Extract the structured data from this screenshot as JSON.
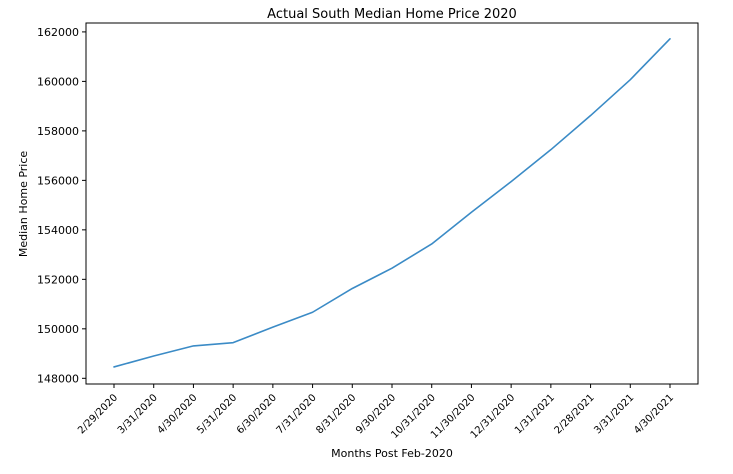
{
  "chart_data": {
    "type": "line",
    "title": "Actual South Median Home Price 2020",
    "xlabel": "Months Post Feb-2020",
    "ylabel": "Median Home Price",
    "categories": [
      "2/29/2020",
      "3/31/2020",
      "4/30/2020",
      "5/31/2020",
      "6/30/2020",
      "7/31/2020",
      "8/31/2020",
      "9/30/2020",
      "10/31/2020",
      "11/30/2020",
      "12/31/2020",
      "1/31/2021",
      "2/28/2021",
      "3/31/2021",
      "4/30/2021"
    ],
    "series": [
      {
        "color": "#3b8bc6",
        "values": [
          148460,
          148900,
          149310,
          149440,
          150070,
          150670,
          151630,
          152450,
          153430,
          154710,
          155950,
          157240,
          158620,
          160070,
          161720
        ]
      }
    ],
    "ylim": [
      147770,
      162360
    ],
    "yticks": [
      148000,
      150000,
      152000,
      154000,
      156000,
      158000,
      160000,
      162000
    ],
    "grid": false,
    "legend": "none"
  }
}
